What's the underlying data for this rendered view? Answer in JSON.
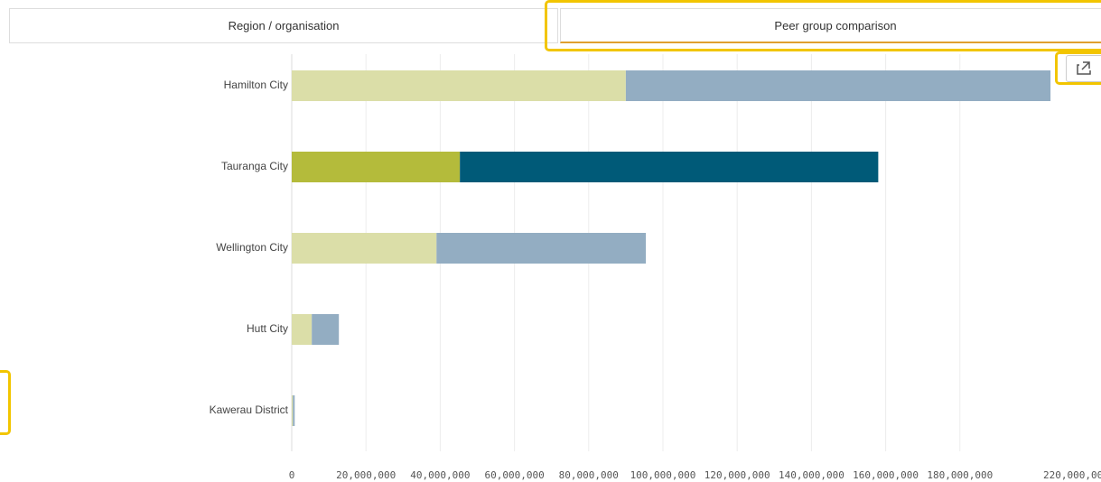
{
  "tabs": [
    "Region / organisation",
    "Peer group comparison"
  ],
  "chart_data": {
    "type": "bar",
    "orientation": "horizontal",
    "stacked": true,
    "categories": [
      "Hamilton City",
      "Tauranga City",
      "Wellington City",
      "Hutt City",
      "Kawerau District"
    ],
    "series": [
      {
        "colors": [
          "#dbdea8",
          "#b4bb3b",
          "#dbdea8",
          "#dbdea8",
          "#dbdea8"
        ],
        "values": [
          90000000,
          45300000,
          39000000,
          5400000,
          300000
        ]
      },
      {
        "colors": [
          "#93adc2",
          "#005a78",
          "#93adc2",
          "#93adc2",
          "#93adc2"
        ],
        "values": [
          114400000,
          112700000,
          56400000,
          7300000,
          500000
        ]
      }
    ],
    "xlim": [
      0,
      220000000
    ],
    "xticks": [
      0,
      {
        "value": 20000000,
        "label": "20,000,000"
      },
      {
        "value": 40000000,
        "label": "40,000,000"
      },
      {
        "value": 60000000,
        "label": "60,000,000"
      },
      {
        "value": 80000000,
        "label": "80,000,000"
      },
      {
        "value": 100000000,
        "label": "100,000,000"
      },
      {
        "value": 120000000,
        "label": "120,000,000"
      },
      {
        "value": 140000000,
        "label": "140,000,000"
      },
      {
        "value": 160000000,
        "label": "160,000,000"
      },
      {
        "value": 180000000,
        "label": "180,000,000"
      },
      {
        "value": 220000000,
        "label": "220,000,000"
      }
    ],
    "grid": true
  }
}
